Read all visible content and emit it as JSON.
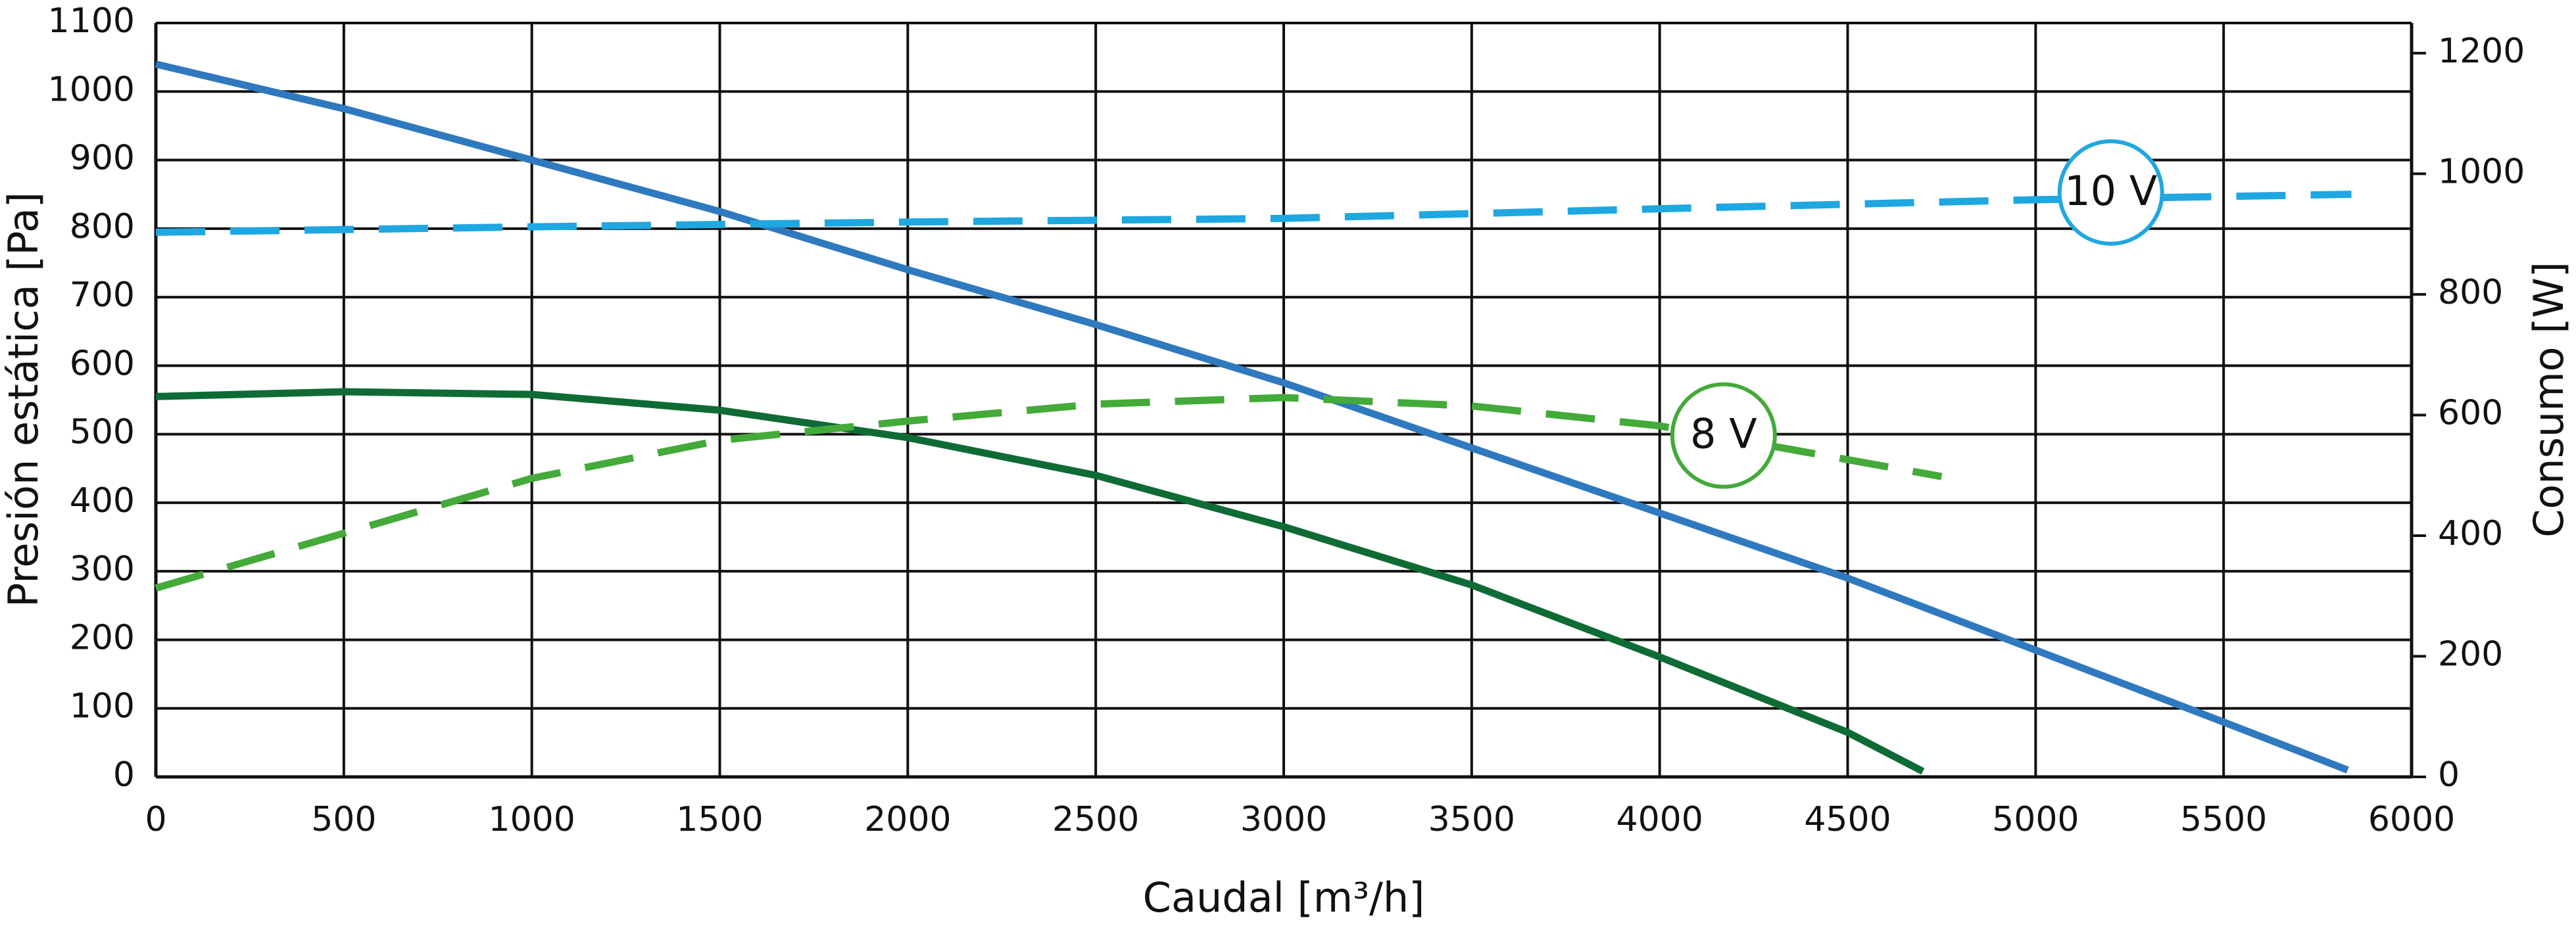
{
  "chart_data": {
    "type": "line",
    "x_label": "Caudal [m³/h]",
    "y_label": "Presión estática [Pa]",
    "y2_label": "Consumo [W]",
    "xlim": [
      0,
      6000
    ],
    "xticks": [
      0,
      500,
      1000,
      1500,
      2000,
      2500,
      3000,
      3500,
      4000,
      4500,
      5000,
      5500,
      6000
    ],
    "ylim": [
      0,
      1100
    ],
    "yticks": [
      0,
      100,
      200,
      300,
      400,
      500,
      600,
      700,
      800,
      900,
      1000,
      1100
    ],
    "y2lim": [
      0,
      1250
    ],
    "y2ticks": [
      0,
      200,
      400,
      600,
      800,
      1000,
      1200
    ],
    "grid": true,
    "series": [
      {
        "color": "#2f79bf",
        "dashed": false,
        "x": [
          0,
          500,
          1000,
          1500,
          2000,
          2500,
          3000,
          3500,
          4000,
          4500,
          5000,
          5500,
          5830
        ],
        "values": [
          1040,
          975,
          900,
          825,
          740,
          660,
          575,
          480,
          385,
          290,
          185,
          80,
          10
        ]
      },
      {
        "color": "#0f6b35",
        "dashed": false,
        "x": [
          0,
          500,
          1000,
          1500,
          2000,
          2500,
          3000,
          3500,
          4000,
          4500,
          4700
        ],
        "values": [
          555,
          562,
          558,
          535,
          495,
          440,
          365,
          280,
          175,
          65,
          8
        ]
      },
      {
        "color": "#1ea7e0",
        "dashed": true,
        "axis": "y2",
        "x": [
          0,
          1000,
          2000,
          3000,
          4000,
          5000,
          5840
        ],
        "values": [
          903,
          912,
          920,
          926,
          942,
          957,
          966
        ]
      },
      {
        "color": "#44aa3a",
        "dashed": true,
        "axis": "y2",
        "x": [
          0,
          1000,
          1500,
          2000,
          2500,
          3000,
          3500,
          4000,
          4750
        ],
        "values": [
          313,
          495,
          558,
          590,
          618,
          629,
          615,
          582,
          498
        ]
      }
    ],
    "annotations": [
      {
        "text": "10 V",
        "x": 5200,
        "y": 969,
        "axis": "y2",
        "color": "#1ea7e0"
      },
      {
        "text": "8 V",
        "x": 4170,
        "y": 566,
        "axis": "y2",
        "color": "#44aa3a"
      }
    ]
  }
}
